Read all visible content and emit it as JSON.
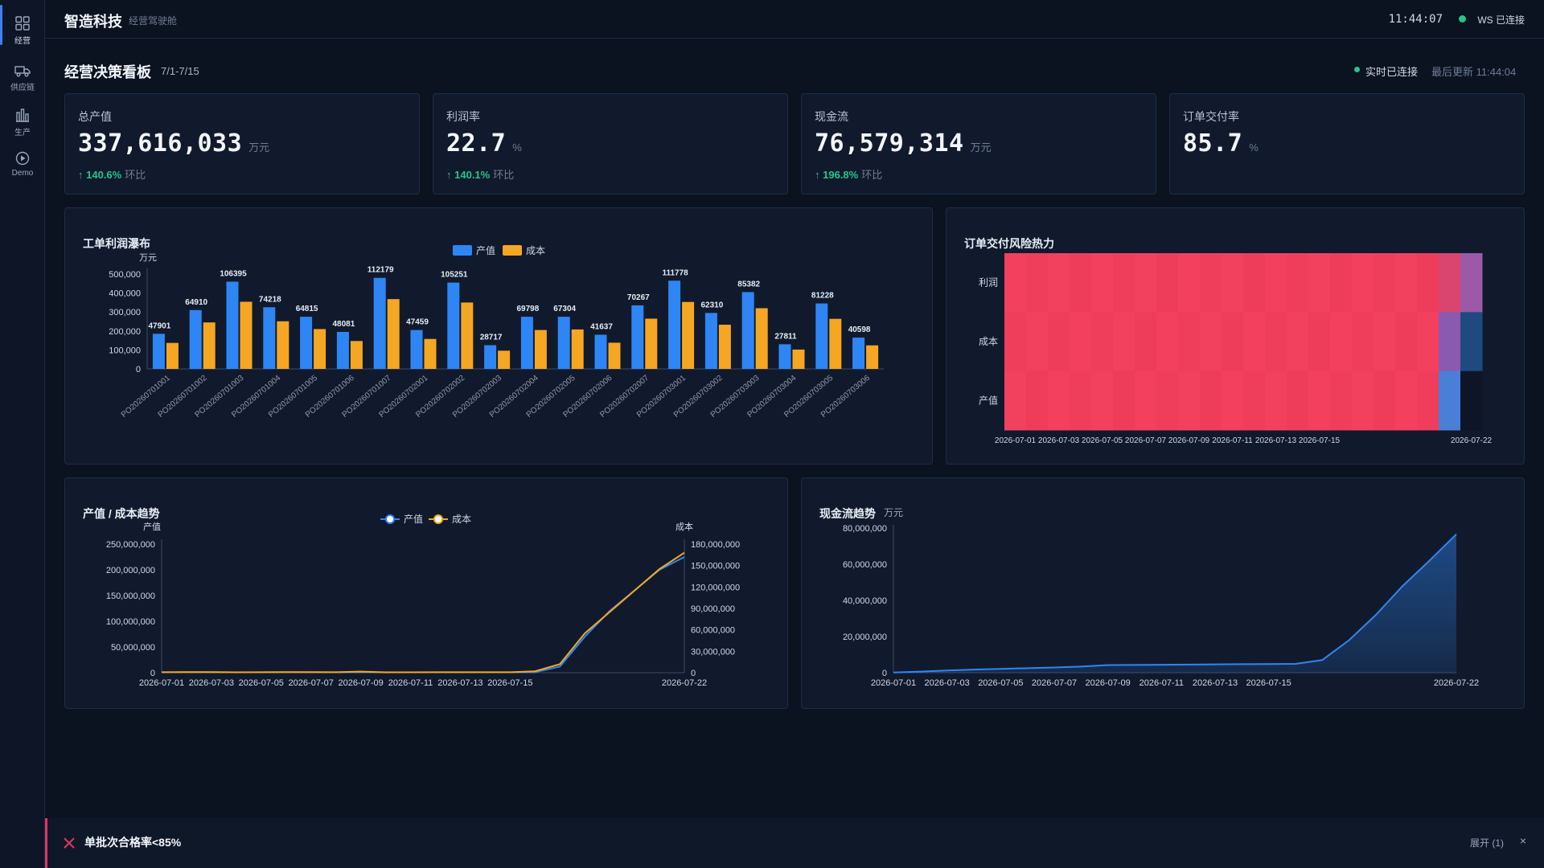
{
  "sidebar": {
    "items": [
      {
        "label": "经营",
        "icon": "grid-icon"
      },
      {
        "label": "供应链",
        "icon": "truck-icon"
      },
      {
        "label": "生产",
        "icon": "factory-icon"
      },
      {
        "label": "Demo",
        "icon": "play-icon"
      }
    ]
  },
  "topbar": {
    "brand": "智造科技",
    "subtitle": "经营驾驶舱",
    "clock": "11:44:07",
    "ws_status": "WS 已连接"
  },
  "header": {
    "title": "经营决策看板",
    "range": "7/1-7/15",
    "realtime_status": "实时已连接",
    "last_updated": "最后更新 11:44:04"
  },
  "kpis": [
    {
      "label": "总产值",
      "value": "337,616,033",
      "unit": "万元",
      "delta": "140.6%",
      "compare": "环比"
    },
    {
      "label": "利润率",
      "value": "22.7",
      "unit": "%",
      "delta": "140.1%",
      "compare": "环比"
    },
    {
      "label": "现金流",
      "value": "76,579,314",
      "unit": "万元",
      "delta": "196.8%",
      "compare": "环比"
    },
    {
      "label": "订单交付率",
      "value": "85.7",
      "unit": "%",
      "delta": "",
      "compare": ""
    }
  ],
  "colors": {
    "blue": "#2e86f5",
    "orange": "#f5a623",
    "green": "#22c58b",
    "red": "#e2365a",
    "heat_red": "#f2405e"
  },
  "chart_data": [
    {
      "type": "bar",
      "title": "工单利润瀑布",
      "ylabel": "万元",
      "categories": [
        "PO20260701001",
        "PO20260701002",
        "PO20260701003",
        "PO20260701004",
        "PO20260701005",
        "PO20260701006",
        "PO20260701007",
        "PO20260702001",
        "PO20260702002",
        "PO20260702003",
        "PO20260702004",
        "PO20260702005",
        "PO20260702006",
        "PO20260702007",
        "PO20260703001",
        "PO20260703002",
        "PO20260703003",
        "PO20260703004",
        "PO20260703005",
        "PO20260703006"
      ],
      "series": [
        {
          "name": "产值",
          "values": [
            185000,
            310000,
            460000,
            325000,
            275000,
            195000,
            480000,
            205000,
            455000,
            125000,
            275000,
            275000,
            180000,
            335000,
            465000,
            295000,
            405000,
            130000,
            345000,
            165000
          ]
        },
        {
          "name": "成本",
          "values": [
            137000,
            245000,
            354000,
            251000,
            210000,
            147000,
            368000,
            158000,
            350000,
            96000,
            205000,
            208000,
            138000,
            265000,
            353000,
            233000,
            320000,
            102000,
            264000,
            124000
          ]
        }
      ],
      "data_labels": [
        "47901",
        "64910",
        "106395",
        "74218",
        "64815",
        "48081",
        "112179",
        "47459",
        "105251",
        "28717",
        "69798",
        "67304",
        "41637",
        "70267",
        "111778",
        "62310",
        "85382",
        "27811",
        "81228",
        "40598"
      ],
      "yticks": [
        "0",
        "100,000",
        "200,000",
        "300,000",
        "400,000",
        "500,000"
      ],
      "ylim": [
        0,
        500000
      ],
      "legend": "top-center"
    },
    {
      "type": "heatmap",
      "title": "订单交付风险热力",
      "rows": [
        "利润",
        "成本",
        "产值"
      ],
      "xticks": [
        "2026-07-01",
        "2026-07-03",
        "2026-07-05",
        "2026-07-07",
        "2026-07-09",
        "2026-07-11",
        "2026-07-13",
        "2026-07-15",
        "2026-07-22"
      ]
    },
    {
      "type": "line",
      "title": "产值 / 成本趋势",
      "ylabel_left": "产值",
      "ylabel_right": "成本",
      "x": [
        "2026-07-01",
        "2026-07-02",
        "2026-07-03",
        "2026-07-04",
        "2026-07-05",
        "2026-07-06",
        "2026-07-07",
        "2026-07-08",
        "2026-07-09",
        "2026-07-10",
        "2026-07-11",
        "2026-07-12",
        "2026-07-13",
        "2026-07-14",
        "2026-07-15",
        "2026-07-16",
        "2026-07-17",
        "2026-07-18",
        "2026-07-19",
        "2026-07-20",
        "2026-07-21",
        "2026-07-22"
      ],
      "xticks": [
        "2026-07-01",
        "2026-07-03",
        "2026-07-05",
        "2026-07-07",
        "2026-07-09",
        "2026-07-11",
        "2026-07-13",
        "2026-07-15",
        "2026-07-22"
      ],
      "series": [
        {
          "name": "产值",
          "axis": "left",
          "values": [
            800000,
            900000,
            900000,
            700000,
            800000,
            900000,
            800000,
            700000,
            1200000,
            600000,
            700000,
            700000,
            700000,
            700000,
            800000,
            1000000,
            12000000,
            70000000,
            120000000,
            160000000,
            200000000,
            225000000
          ]
        },
        {
          "name": "成本",
          "axis": "right",
          "values": [
            700000,
            800000,
            900000,
            600000,
            700000,
            900000,
            800000,
            700000,
            1500000,
            600000,
            600000,
            700000,
            700000,
            700000,
            700000,
            2000000,
            12000000,
            55000000,
            85000000,
            115000000,
            145000000,
            168000000
          ]
        }
      ],
      "yticks_left": [
        "0",
        "50,000,000",
        "100,000,000",
        "150,000,000",
        "200,000,000",
        "250,000,000"
      ],
      "yticks_right": [
        "0",
        "30,000,000",
        "60,000,000",
        "90,000,000",
        "120,000,000",
        "150,000,000",
        "180,000,000"
      ],
      "ylim_left": [
        0,
        250000000
      ],
      "ylim_right": [
        0,
        180000000
      ],
      "legend": "top-center"
    },
    {
      "type": "area",
      "title": "现金流趋势",
      "ylabel": "万元",
      "x": [
        "2026-07-01",
        "2026-07-02",
        "2026-07-03",
        "2026-07-04",
        "2026-07-05",
        "2026-07-06",
        "2026-07-07",
        "2026-07-08",
        "2026-07-09",
        "2026-07-10",
        "2026-07-11",
        "2026-07-12",
        "2026-07-13",
        "2026-07-14",
        "2026-07-15",
        "2026-07-16",
        "2026-07-17",
        "2026-07-18",
        "2026-07-19",
        "2026-07-20",
        "2026-07-21",
        "2026-07-22"
      ],
      "values": [
        100000,
        600000,
        1200000,
        1700000,
        2100000,
        2500000,
        2900000,
        3400000,
        4200000,
        4300000,
        4400000,
        4500000,
        4600000,
        4700000,
        4800000,
        4900000,
        7000000,
        18000000,
        32000000,
        48000000,
        62000000,
        76579314
      ],
      "xticks": [
        "2026-07-01",
        "2026-07-03",
        "2026-07-05",
        "2026-07-07",
        "2026-07-09",
        "2026-07-11",
        "2026-07-13",
        "2026-07-15",
        "2026-07-22"
      ],
      "yticks": [
        "0",
        "20,000,000",
        "40,000,000",
        "60,000,000",
        "80,000,000"
      ],
      "ylim": [
        0,
        80000000
      ]
    }
  ],
  "alert": {
    "text": "单批次合格率<85%",
    "expand": "展开 (1)",
    "close": "×"
  }
}
